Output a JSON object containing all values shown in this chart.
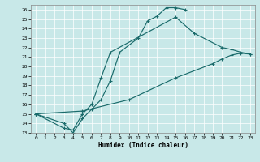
{
  "xlabel": "Humidex (Indice chaleur)",
  "bg_color": "#c8e8e8",
  "grid_color": "#ffffff",
  "line_color": "#1a6b6b",
  "xlim": [
    -0.5,
    23.5
  ],
  "ylim": [
    13,
    26.5
  ],
  "yticks": [
    13,
    14,
    15,
    16,
    17,
    18,
    19,
    20,
    21,
    22,
    23,
    24,
    25,
    26
  ],
  "xticks": [
    0,
    1,
    2,
    3,
    4,
    5,
    6,
    7,
    8,
    9,
    10,
    11,
    12,
    13,
    14,
    15,
    16,
    17,
    18,
    19,
    20,
    21,
    22,
    23
  ],
  "line1_x": [
    0,
    3,
    4,
    5,
    6,
    7,
    8,
    9,
    11,
    12,
    13,
    14,
    15,
    16
  ],
  "line1_y": [
    15.0,
    14.0,
    13.0,
    14.5,
    15.5,
    16.5,
    18.5,
    21.5,
    23.0,
    24.8,
    25.3,
    26.2,
    26.2,
    26.0
  ],
  "line2_x": [
    0,
    3,
    4,
    5,
    6,
    7,
    8,
    15,
    17,
    20,
    21,
    22,
    23
  ],
  "line2_y": [
    15.0,
    13.5,
    13.3,
    15.0,
    16.0,
    18.8,
    21.5,
    25.2,
    23.5,
    22.0,
    21.8,
    21.5,
    21.3
  ],
  "line3_x": [
    0,
    5,
    10,
    15,
    19,
    20,
    21,
    22,
    23
  ],
  "line3_y": [
    15.0,
    15.3,
    16.5,
    18.8,
    20.3,
    20.8,
    21.2,
    21.4,
    21.3
  ]
}
